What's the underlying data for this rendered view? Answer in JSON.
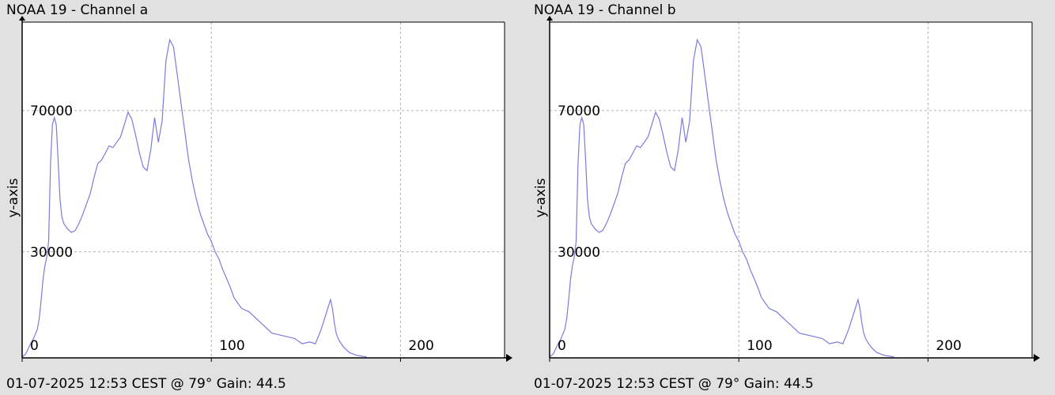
{
  "charts": [
    {
      "title": "NOAA 19 - Channel a",
      "footer": "01-07-2025 12:53 CEST @ 79° Gain: 44.5"
    },
    {
      "title": "NOAA 19 - Channel b",
      "footer": "01-07-2025 12:53 CEST @ 79° Gain: 44.5"
    }
  ],
  "chart_data": [
    {
      "type": "line",
      "title": "NOAA 19 - Channel a",
      "xlabel": "",
      "ylabel": "y-axis",
      "xlim": [
        0,
        255
      ],
      "ylim": [
        0,
        95000
      ],
      "x_ticks": [
        0,
        100,
        200
      ],
      "y_ticks": [
        30000,
        70000
      ],
      "grid": true,
      "line_color": "#7b7bdc",
      "x": [
        0,
        2,
        4,
        6,
        8,
        9,
        10,
        11,
        12,
        13,
        14,
        15,
        16,
        17,
        18,
        19,
        20,
        21,
        22,
        24,
        26,
        28,
        30,
        32,
        34,
        36,
        38,
        40,
        42,
        44,
        46,
        48,
        50,
        52,
        54,
        56,
        58,
        60,
        62,
        64,
        66,
        68,
        70,
        72,
        74,
        76,
        78,
        80,
        82,
        84,
        86,
        88,
        90,
        92,
        94,
        96,
        98,
        100,
        102,
        104,
        106,
        108,
        110,
        112,
        116,
        120,
        124,
        128,
        132,
        136,
        140,
        144,
        148,
        152,
        155,
        158,
        161,
        163,
        164,
        165,
        166,
        167,
        168,
        170,
        173,
        177,
        182
      ],
      "y": [
        200,
        1200,
        3500,
        5500,
        8000,
        11000,
        16000,
        22000,
        26000,
        28500,
        33000,
        55000,
        66000,
        68000,
        66000,
        56000,
        45000,
        40000,
        38000,
        36500,
        35500,
        36000,
        38000,
        40500,
        43500,
        46500,
        51000,
        55000,
        56000,
        58000,
        60000,
        59500,
        61000,
        62500,
        66000,
        69500,
        67500,
        63000,
        58000,
        54000,
        53000,
        59000,
        68000,
        61000,
        67000,
        84000,
        90000,
        88000,
        80000,
        72000,
        64000,
        56000,
        50000,
        45000,
        41000,
        38000,
        35000,
        33000,
        30000,
        28000,
        25000,
        22500,
        20000,
        17000,
        14000,
        13000,
        11000,
        9000,
        7000,
        6500,
        6000,
        5500,
        4000,
        4500,
        4000,
        8000,
        13000,
        16500,
        14000,
        10000,
        7000,
        5500,
        4500,
        3000,
        1500,
        700,
        300
      ]
    },
    {
      "type": "line",
      "title": "NOAA 19 - Channel b",
      "xlabel": "",
      "ylabel": "y-axis",
      "xlim": [
        0,
        255
      ],
      "ylim": [
        0,
        95000
      ],
      "x_ticks": [
        0,
        100,
        200
      ],
      "y_ticks": [
        30000,
        70000
      ],
      "grid": true,
      "line_color": "#7b7bdc",
      "x": [
        0,
        2,
        4,
        6,
        8,
        9,
        10,
        11,
        12,
        13,
        14,
        15,
        16,
        17,
        18,
        19,
        20,
        21,
        22,
        24,
        26,
        28,
        30,
        32,
        34,
        36,
        38,
        40,
        42,
        44,
        46,
        48,
        50,
        52,
        54,
        56,
        58,
        60,
        62,
        64,
        66,
        68,
        70,
        72,
        74,
        76,
        78,
        80,
        82,
        84,
        86,
        88,
        90,
        92,
        94,
        96,
        98,
        100,
        102,
        104,
        106,
        108,
        110,
        112,
        116,
        120,
        124,
        128,
        132,
        136,
        140,
        144,
        148,
        152,
        155,
        158,
        161,
        163,
        164,
        165,
        166,
        167,
        168,
        170,
        173,
        177,
        182
      ],
      "y": [
        200,
        1200,
        3500,
        5500,
        8000,
        11000,
        16000,
        22000,
        26000,
        28500,
        33000,
        55000,
        66000,
        68000,
        66000,
        56000,
        45000,
        40000,
        38000,
        36500,
        35500,
        36000,
        38000,
        40500,
        43500,
        46500,
        51000,
        55000,
        56000,
        58000,
        60000,
        59500,
        61000,
        62500,
        66000,
        69500,
        67500,
        63000,
        58000,
        54000,
        53000,
        59000,
        68000,
        61000,
        67000,
        84000,
        90000,
        88000,
        80000,
        72000,
        64000,
        56000,
        50000,
        45000,
        41000,
        38000,
        35000,
        33000,
        30000,
        28000,
        25000,
        22500,
        20000,
        17000,
        14000,
        13000,
        11000,
        9000,
        7000,
        6500,
        6000,
        5500,
        4000,
        4500,
        4000,
        8000,
        13000,
        16500,
        14000,
        10000,
        7000,
        5500,
        4500,
        3000,
        1500,
        700,
        300
      ]
    }
  ]
}
